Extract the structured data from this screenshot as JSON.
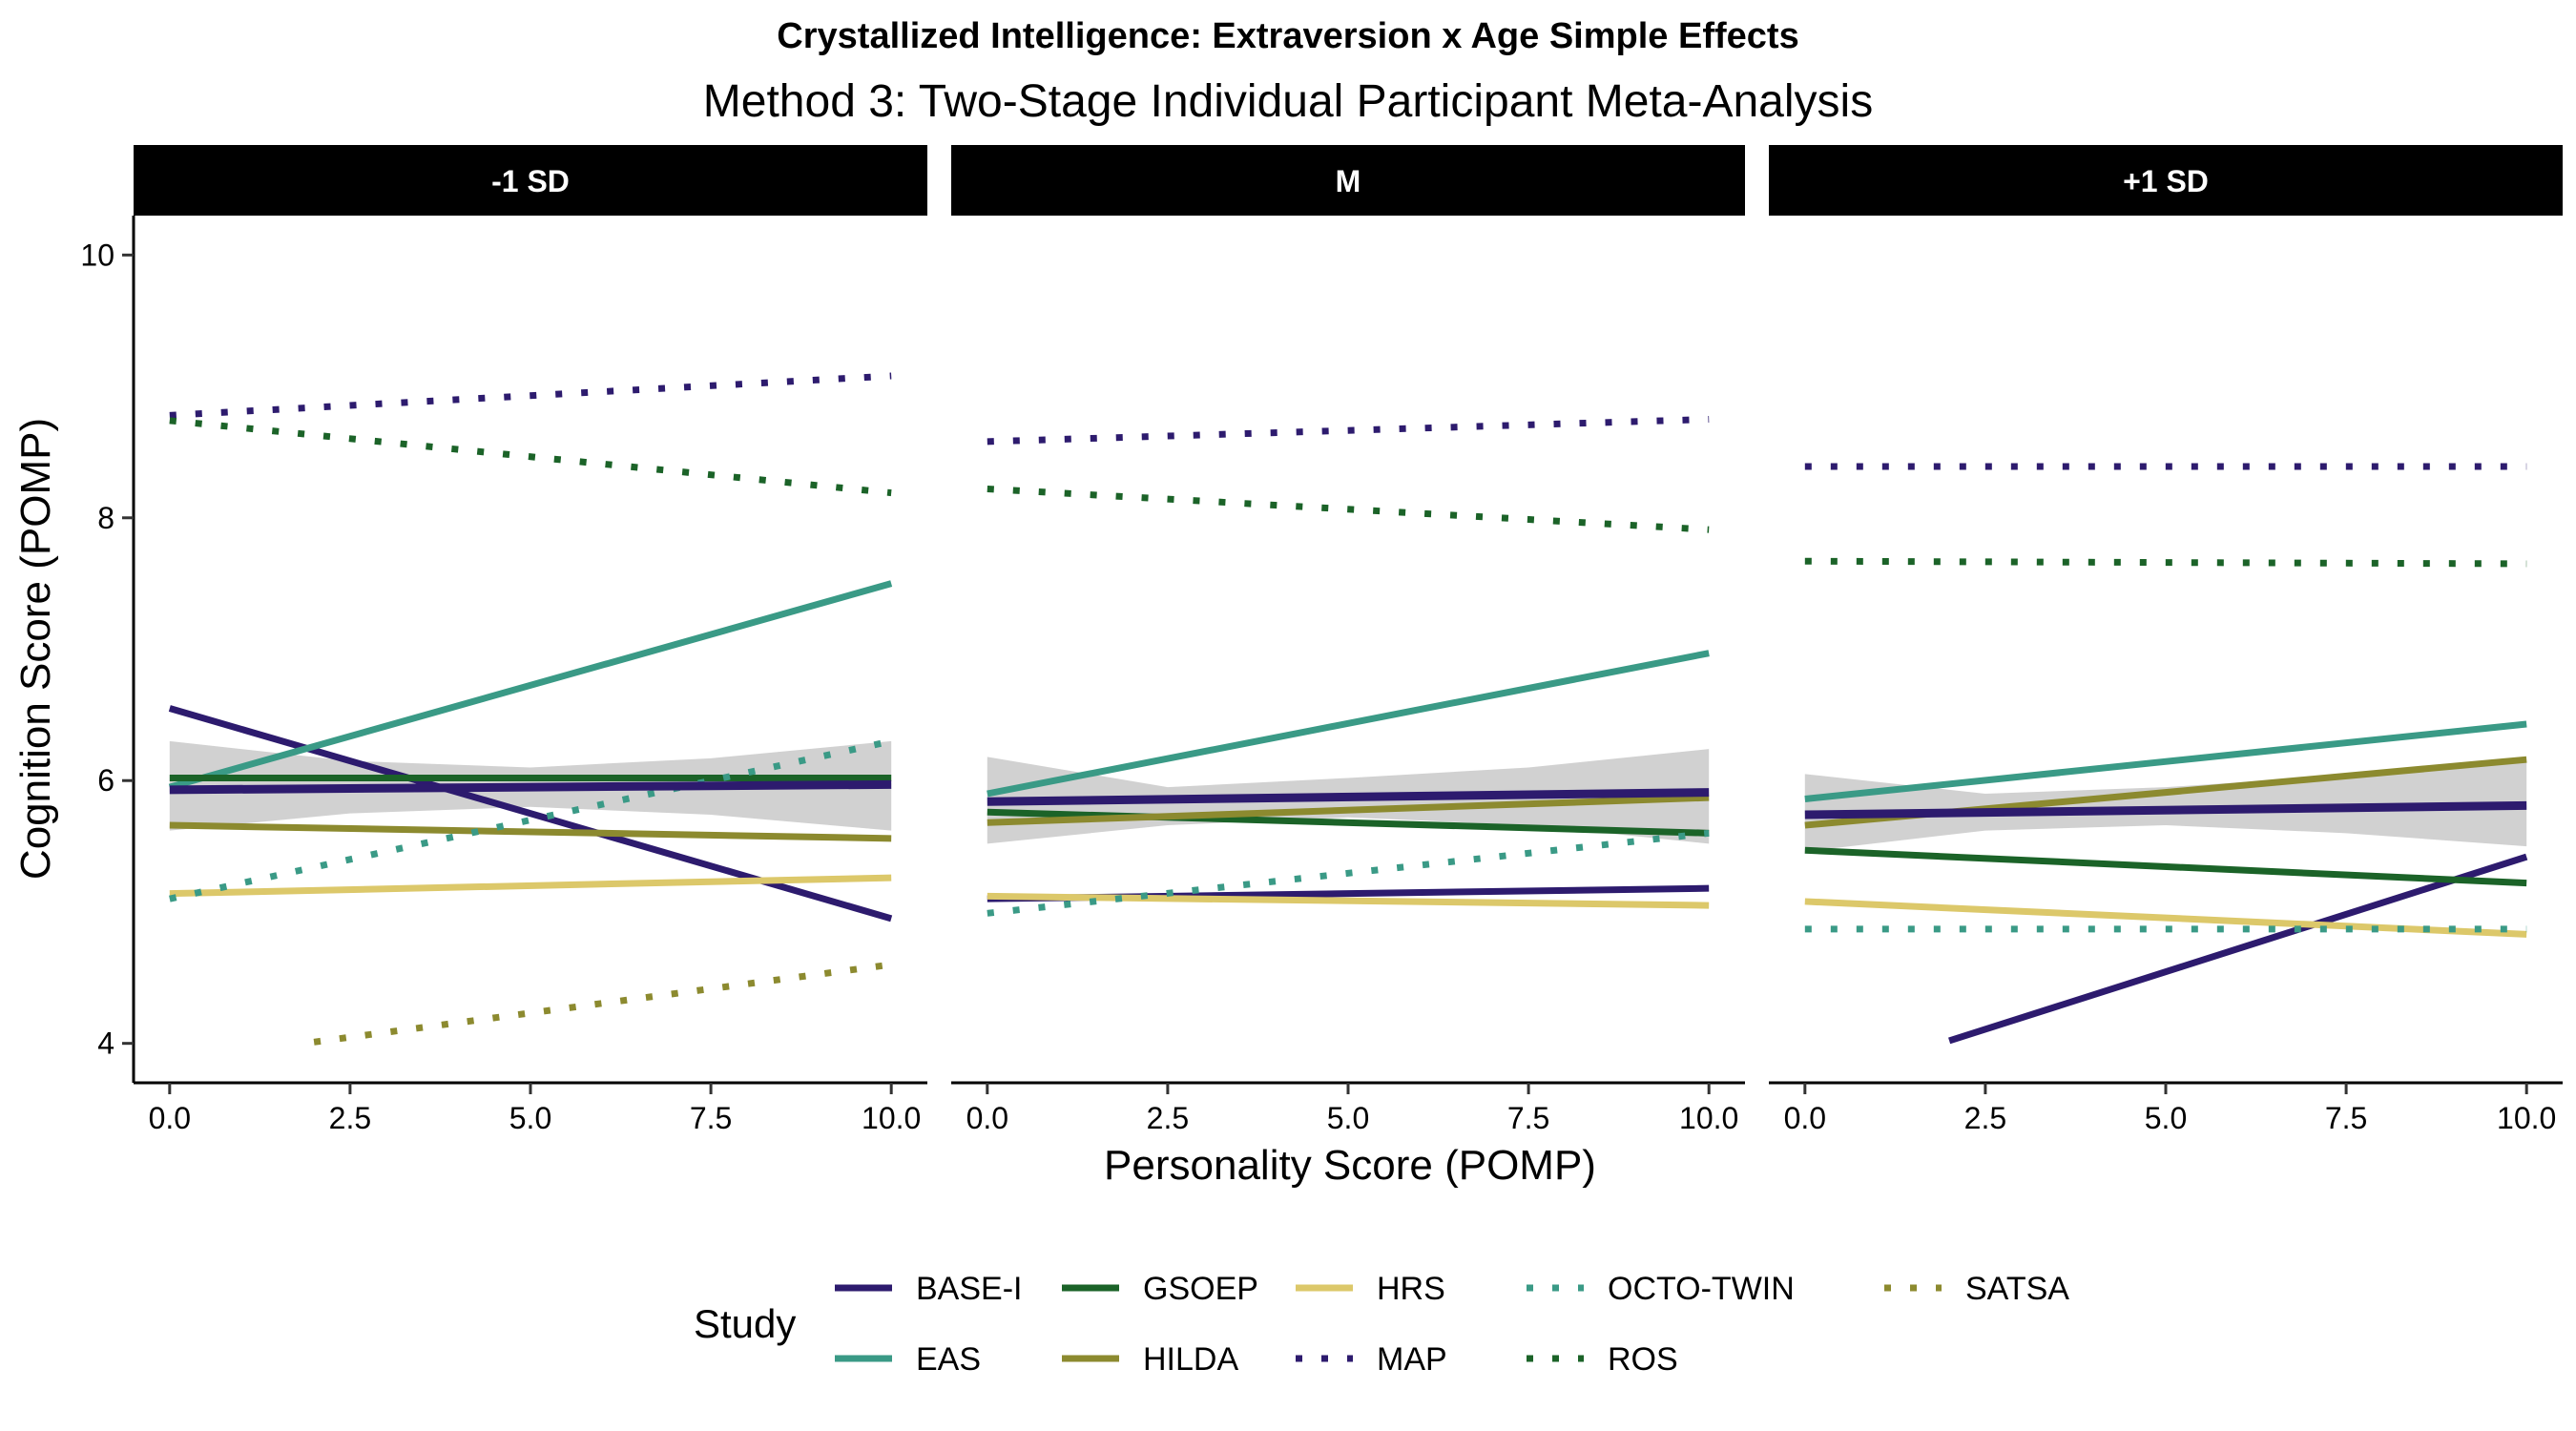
{
  "chart_data": {
    "type": "line",
    "title": "Crystallized Intelligence: Extraversion x Age Simple Effects",
    "subtitle": "Method 3: Two-Stage Individual Participant Meta-Analysis",
    "xlabel": "Personality Score (POMP)",
    "ylabel": "Cognition Score (POMP)",
    "xlim": [
      -0.5,
      10.5
    ],
    "ylim": [
      3.7,
      10.3
    ],
    "x_ticks": [
      "0.0",
      "2.5",
      "5.0",
      "7.5",
      "10.0"
    ],
    "x_tick_values": [
      0,
      2.5,
      5,
      7.5,
      10
    ],
    "y_ticks": [
      "4",
      "6",
      "8",
      "10"
    ],
    "y_tick_values": [
      4,
      6,
      8,
      10
    ],
    "grid": false,
    "legend": {
      "title": "Study",
      "placement": "bottom",
      "entries": [
        {
          "name": "BASE-I",
          "color": "#2d1b6e",
          "dash": "solid"
        },
        {
          "name": "EAS",
          "color": "#3a9a86",
          "dash": "solid"
        },
        {
          "name": "GSOEP",
          "color": "#1b6328",
          "dash": "solid"
        },
        {
          "name": "HILDA",
          "color": "#8c8a2f",
          "dash": "solid"
        },
        {
          "name": "HRS",
          "color": "#dcc86a",
          "dash": "solid"
        },
        {
          "name": "MAP",
          "color": "#2d1b6e",
          "dash": "dotted"
        },
        {
          "name": "OCTO-TWIN",
          "color": "#3a9a86",
          "dash": "dotted"
        },
        {
          "name": "ROS",
          "color": "#1b6328",
          "dash": "dotted"
        },
        {
          "name": "SATSA",
          "color": "#8c8a2f",
          "dash": "dotted"
        }
      ]
    },
    "panels": [
      {
        "label": "-1 SD",
        "ribbon": {
          "x": [
            0,
            2.5,
            5,
            7.5,
            10
          ],
          "lower": [
            5.62,
            5.75,
            5.8,
            5.74,
            5.62
          ],
          "upper": [
            6.3,
            6.15,
            6.1,
            6.17,
            6.3
          ]
        },
        "series": [
          {
            "name": "BASE-I",
            "x": [
              0,
              10
            ],
            "y": [
              6.55,
              4.95
            ]
          },
          {
            "name": "EAS",
            "x": [
              0,
              10
            ],
            "y": [
              5.95,
              7.5
            ]
          },
          {
            "name": "GSOEP",
            "x": [
              0,
              10
            ],
            "y": [
              6.02,
              6.02
            ]
          },
          {
            "name": "HILDA",
            "x": [
              0,
              10
            ],
            "y": [
              5.66,
              5.56
            ]
          },
          {
            "name": "HRS",
            "x": [
              0,
              10
            ],
            "y": [
              5.14,
              5.26
            ]
          },
          {
            "name": "MAP",
            "x": [
              0,
              10
            ],
            "y": [
              8.78,
              9.08
            ]
          },
          {
            "name": "OCTO-TWIN",
            "x": [
              0,
              10
            ],
            "y": [
              5.1,
              6.3
            ]
          },
          {
            "name": "ROS",
            "x": [
              0,
              10
            ],
            "y": [
              8.74,
              8.19
            ]
          },
          {
            "name": "SATSA",
            "x": [
              2,
              10
            ],
            "y": [
              4.01,
              4.6
            ]
          },
          {
            "name": "Overall",
            "x": [
              0,
              10
            ],
            "y": [
              5.93,
              5.97
            ]
          }
        ]
      },
      {
        "label": "M",
        "ribbon": {
          "x": [
            0,
            2.5,
            5,
            7.5,
            10
          ],
          "lower": [
            5.52,
            5.66,
            5.72,
            5.66,
            5.52
          ],
          "upper": [
            6.18,
            5.95,
            6.02,
            6.1,
            6.24
          ]
        },
        "series": [
          {
            "name": "BASE-I",
            "x": [
              0,
              10
            ],
            "y": [
              5.1,
              5.18
            ]
          },
          {
            "name": "EAS",
            "x": [
              0,
              10
            ],
            "y": [
              5.9,
              6.97
            ]
          },
          {
            "name": "GSOEP",
            "x": [
              0,
              10
            ],
            "y": [
              5.76,
              5.6
            ]
          },
          {
            "name": "HILDA",
            "x": [
              0,
              10
            ],
            "y": [
              5.68,
              5.87
            ]
          },
          {
            "name": "HRS",
            "x": [
              0,
              10
            ],
            "y": [
              5.12,
              5.05
            ]
          },
          {
            "name": "MAP",
            "x": [
              0,
              10
            ],
            "y": [
              8.58,
              8.75
            ]
          },
          {
            "name": "OCTO-TWIN",
            "x": [
              0,
              10
            ],
            "y": [
              4.99,
              5.6
            ]
          },
          {
            "name": "ROS",
            "x": [
              0,
              10
            ],
            "y": [
              8.22,
              7.91
            ]
          },
          {
            "name": "Overall",
            "x": [
              0,
              10
            ],
            "y": [
              5.84,
              5.91
            ]
          }
        ]
      },
      {
        "label": "+1 SD",
        "ribbon": {
          "x": [
            0,
            2.5,
            5,
            7.5,
            10
          ],
          "lower": [
            5.46,
            5.62,
            5.66,
            5.6,
            5.5
          ],
          "upper": [
            6.05,
            5.9,
            5.95,
            6.04,
            6.14
          ]
        },
        "series": [
          {
            "name": "BASE-I",
            "x": [
              2,
              10
            ],
            "y": [
              4.02,
              5.42
            ]
          },
          {
            "name": "EAS",
            "x": [
              0,
              10
            ],
            "y": [
              5.86,
              6.43
            ]
          },
          {
            "name": "GSOEP",
            "x": [
              0,
              10
            ],
            "y": [
              5.47,
              5.22
            ]
          },
          {
            "name": "HILDA",
            "x": [
              0,
              10
            ],
            "y": [
              5.66,
              6.16
            ]
          },
          {
            "name": "HRS",
            "x": [
              0,
              10
            ],
            "y": [
              5.08,
              4.83
            ]
          },
          {
            "name": "MAP",
            "x": [
              0,
              10
            ],
            "y": [
              8.39,
              8.39
            ]
          },
          {
            "name": "OCTO-TWIN",
            "x": [
              0,
              10
            ],
            "y": [
              4.87,
              4.87
            ]
          },
          {
            "name": "ROS",
            "x": [
              0,
              10
            ],
            "y": [
              7.67,
              7.65
            ]
          },
          {
            "name": "Overall",
            "x": [
              0,
              10
            ],
            "y": [
              5.74,
              5.81
            ]
          }
        ]
      }
    ]
  }
}
